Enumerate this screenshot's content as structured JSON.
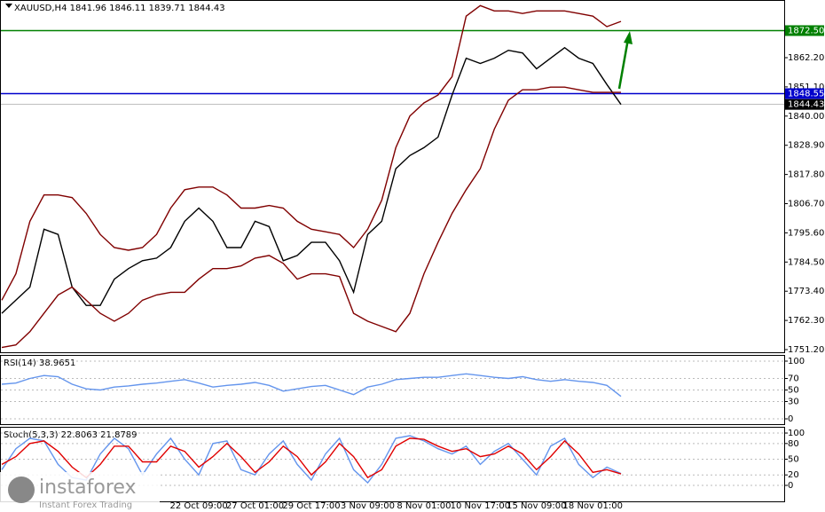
{
  "chart_data": [
    {
      "type": "line",
      "title": "XAUUSD,H4  1841.96 1846.11 1839.71 1844.43",
      "categories": [
        null,
        null,
        null,
        null,
        null,
        null,
        null,
        null,
        null,
        null,
        null,
        null,
        null,
        null,
        "22 Oct 09:00",
        null,
        null,
        null,
        "27 Oct 01:00",
        null,
        null,
        null,
        "29 Oct 17:00",
        null,
        null,
        null,
        "3 Nov 09:00",
        null,
        null,
        null,
        "8 Nov 01:00",
        null,
        null,
        null,
        "10 Nov 17:00",
        null,
        null,
        null,
        "15 Nov 09:00",
        null,
        null,
        null,
        "18 Nov 01:00",
        null,
        null
      ],
      "series": [
        {
          "name": "Close",
          "color": "#000000",
          "values": [
            1765,
            1770,
            1775,
            1797,
            1795,
            1775,
            1768,
            1768,
            1778,
            1782,
            1785,
            1786,
            1790,
            1800,
            1805,
            1800,
            1790,
            1790,
            1800,
            1798,
            1785,
            1787,
            1792,
            1792,
            1785,
            1773,
            1795,
            1800,
            1820,
            1825,
            1828,
            1832,
            1848,
            1862,
            1860,
            1862,
            1865,
            1864,
            1858,
            1862,
            1866,
            1862,
            1860,
            1852,
            1844.43
          ]
        },
        {
          "name": "Upper band",
          "color": "#800000",
          "values": [
            1770,
            1780,
            1800,
            1810,
            1810,
            1809,
            1803,
            1795,
            1790,
            1789,
            1790,
            1795,
            1805,
            1812,
            1813,
            1813,
            1810,
            1805,
            1805,
            1806,
            1805,
            1800,
            1797,
            1796,
            1795,
            1790,
            1797,
            1808,
            1828,
            1840,
            1845,
            1848,
            1855,
            1878,
            1882,
            1880,
            1880,
            1879,
            1880,
            1880,
            1880,
            1879,
            1878,
            1874,
            1876
          ]
        },
        {
          "name": "Lower band",
          "color": "#800000",
          "values": [
            1752,
            1753,
            1758,
            1765,
            1772,
            1775,
            1770,
            1765,
            1762,
            1765,
            1770,
            1772,
            1773,
            1773,
            1778,
            1782,
            1782,
            1783,
            1786,
            1787,
            1784,
            1778,
            1780,
            1780,
            1779,
            1765,
            1762,
            1760,
            1758,
            1765,
            1780,
            1792,
            1803,
            1812,
            1820,
            1835,
            1846,
            1850,
            1850,
            1851,
            1851,
            1850,
            1849,
            1849,
            1849
          ]
        }
      ],
      "levels": [
        {
          "value": 1872.5,
          "label": "1872.50",
          "color": "#008000"
        },
        {
          "value": 1848.55,
          "label": "1848.55",
          "color": "#0000cc"
        },
        {
          "value": 1844.43,
          "label": "1844.43",
          "color": "#000000"
        }
      ],
      "ylim": [
        1749.85,
        1883.46
      ],
      "yticks": [
        {
          "value": 1862.2,
          "label": "1862.20"
        },
        {
          "value": 1851.1,
          "label": "1851.10"
        },
        {
          "value": 1840,
          "label": "1840.00"
        },
        {
          "value": 1828.9,
          "label": "1828.90"
        },
        {
          "value": 1817.8,
          "label": "1817.80"
        },
        {
          "value": 1806.7,
          "label": "1806.70"
        },
        {
          "value": 1795.6,
          "label": "1795.60"
        },
        {
          "value": 1784.5,
          "label": "1784.50"
        },
        {
          "value": 1773.4,
          "label": "1773.40"
        },
        {
          "value": 1762.3,
          "label": "1762.30"
        },
        {
          "value": 1751.2,
          "label": "1751.20"
        }
      ]
    },
    {
      "type": "line",
      "title": "RSI(14) 38.9651",
      "series": [
        {
          "name": "RSI",
          "color": "#6495ed",
          "values": [
            60,
            62,
            70,
            75,
            73,
            60,
            52,
            50,
            55,
            57,
            60,
            62,
            65,
            68,
            62,
            55,
            58,
            60,
            63,
            58,
            48,
            52,
            56,
            58,
            50,
            42,
            55,
            60,
            68,
            70,
            72,
            72,
            75,
            78,
            75,
            72,
            70,
            73,
            68,
            65,
            68,
            65,
            63,
            58,
            38.9651
          ]
        }
      ],
      "ylim": [
        -9.2,
        109.2
      ],
      "yticks": [
        100,
        70,
        50,
        30,
        0
      ]
    },
    {
      "type": "line",
      "title": "Stoch(5,3,3) 22.8063 21.8789",
      "series": [
        {
          "name": "Main",
          "color": "#6495ed",
          "values": [
            30,
            70,
            90,
            85,
            40,
            15,
            10,
            60,
            90,
            70,
            20,
            60,
            90,
            50,
            20,
            80,
            85,
            30,
            20,
            60,
            85,
            40,
            10,
            60,
            90,
            30,
            5,
            40,
            90,
            95,
            85,
            70,
            60,
            75,
            40,
            65,
            80,
            50,
            20,
            75,
            90,
            40,
            15,
            35,
            22.8063
          ]
        },
        {
          "name": "Signal",
          "color": "#e00000",
          "values": [
            40,
            55,
            80,
            85,
            65,
            35,
            15,
            40,
            75,
            75,
            45,
            45,
            75,
            65,
            35,
            55,
            80,
            55,
            25,
            45,
            75,
            55,
            20,
            45,
            80,
            55,
            15,
            30,
            75,
            90,
            88,
            75,
            65,
            70,
            55,
            60,
            75,
            60,
            30,
            55,
            85,
            60,
            25,
            30,
            21.8789
          ]
        }
      ],
      "ylim": [
        -30.5,
        110.2
      ],
      "yticks": [
        100,
        80,
        50,
        20,
        0
      ]
    }
  ],
  "watermark": {
    "brand": "instaforex",
    "tagline": "Instant Forex Trading"
  }
}
